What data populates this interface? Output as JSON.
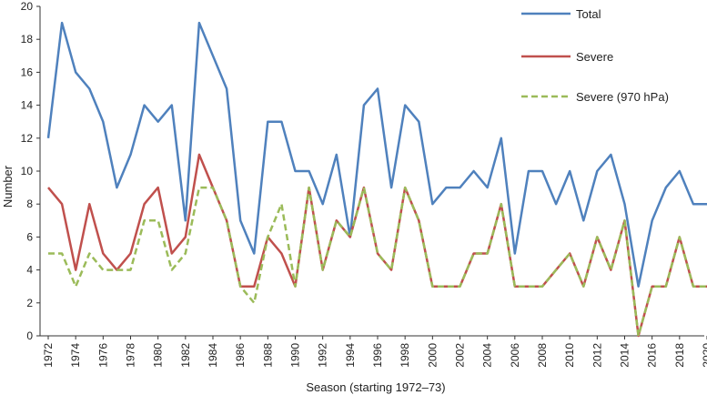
{
  "chart_data": {
    "type": "line",
    "title": "",
    "xlabel": "Season (starting 1972–73)",
    "ylabel": "Number",
    "xlim": [
      1972,
      2020
    ],
    "ylim": [
      0,
      20
    ],
    "y_ticks": [
      0,
      2,
      4,
      6,
      8,
      10,
      12,
      14,
      16,
      18,
      20
    ],
    "x_ticks": [
      1972,
      1974,
      1976,
      1978,
      1980,
      1982,
      1984,
      1986,
      1988,
      1990,
      1992,
      1994,
      1996,
      1998,
      2000,
      2002,
      2004,
      2006,
      2008,
      2010,
      2012,
      2014,
      2016,
      2018,
      2020
    ],
    "x_tick_rotation_deg": -90,
    "grid": false,
    "legend_position": "top-right",
    "x": [
      1972,
      1973,
      1974,
      1975,
      1976,
      1977,
      1978,
      1979,
      1980,
      1981,
      1982,
      1983,
      1984,
      1985,
      1986,
      1987,
      1988,
      1989,
      1990,
      1991,
      1992,
      1993,
      1994,
      1995,
      1996,
      1997,
      1998,
      1999,
      2000,
      2001,
      2002,
      2003,
      2004,
      2005,
      2006,
      2007,
      2008,
      2009,
      2010,
      2011,
      2012,
      2013,
      2014,
      2015,
      2016,
      2017,
      2018,
      2019,
      2020
    ],
    "series": [
      {
        "name": "Total",
        "color": "#4f81bd",
        "dash": "solid",
        "values": [
          12,
          19,
          16,
          15,
          13,
          9,
          11,
          14,
          13,
          14,
          7,
          19,
          17,
          15,
          7,
          5,
          13,
          13,
          10,
          10,
          8,
          11,
          6,
          14,
          15,
          9,
          14,
          13,
          8,
          9,
          9,
          10,
          9,
          12,
          5,
          10,
          10,
          8,
          10,
          7,
          10,
          11,
          8,
          3,
          7,
          9,
          10,
          8,
          8
        ]
      },
      {
        "name": "Severe",
        "color": "#c0504d",
        "dash": "solid",
        "values": [
          9,
          8,
          4,
          8,
          5,
          4,
          5,
          8,
          9,
          5,
          6,
          11,
          9,
          7,
          3,
          3,
          6,
          5,
          3,
          9,
          4,
          7,
          6,
          9,
          5,
          4,
          9,
          7,
          3,
          3,
          3,
          5,
          5,
          8,
          3,
          3,
          3,
          4,
          5,
          3,
          6,
          4,
          7,
          0,
          3,
          3,
          6,
          3,
          3
        ]
      },
      {
        "name": "Severe (970 hPa)",
        "color": "#9bbb59",
        "dash": "dashed",
        "values": [
          5,
          5,
          3,
          5,
          4,
          4,
          4,
          7,
          7,
          4,
          5,
          9,
          9,
          7,
          3,
          2,
          6,
          8,
          3,
          9,
          4,
          7,
          6,
          9,
          5,
          4,
          9,
          7,
          3,
          3,
          3,
          5,
          5,
          8,
          3,
          3,
          3,
          4,
          5,
          3,
          6,
          4,
          7,
          0,
          3,
          3,
          6,
          3,
          3
        ]
      }
    ]
  }
}
